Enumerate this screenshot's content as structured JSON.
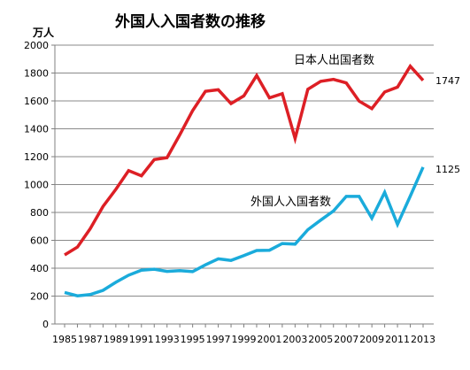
{
  "chart_data": {
    "type": "line",
    "title": "外国人入国者数の推移",
    "unit_label": "万人",
    "ylim": [
      0,
      2000
    ],
    "y_ticks": [
      0,
      200,
      400,
      600,
      800,
      1000,
      1200,
      1400,
      1600,
      1800,
      2000
    ],
    "x_tick_labels": [
      "1985",
      "1987",
      "1989",
      "1991",
      "1993",
      "1995",
      "1997",
      "1999",
      "2001",
      "2003",
      "2005",
      "2007",
      "2009",
      "2011",
      "2013"
    ],
    "x": [
      1985,
      1986,
      1987,
      1988,
      1989,
      1990,
      1991,
      1992,
      1993,
      1994,
      1995,
      1996,
      1997,
      1998,
      1999,
      2000,
      2001,
      2002,
      2003,
      2004,
      2005,
      2006,
      2007,
      2008,
      2009,
      2010,
      2011,
      2012,
      2013
    ],
    "grid": "horizontal",
    "legend": "none",
    "series": [
      {
        "name": "日本人出国者数",
        "color": "#dd1f25",
        "end_value_label": "1747",
        "values": [
          495,
          552,
          683,
          843,
          966,
          1100,
          1063,
          1179,
          1193,
          1358,
          1530,
          1669,
          1680,
          1581,
          1636,
          1782,
          1622,
          1652,
          1330,
          1683,
          1740,
          1754,
          1729,
          1599,
          1545,
          1664,
          1699,
          1849,
          1747
        ]
      },
      {
        "name": "外国人入国者数",
        "color": "#1aabdb",
        "end_value_label": "1125",
        "values": [
          226,
          202,
          211,
          241,
          299,
          350,
          386,
          393,
          377,
          383,
          375,
          424,
          467,
          456,
          490,
          527,
          529,
          577,
          573,
          676,
          745,
          811,
          915,
          915,
          759,
          944,
          714,
          917,
          1125
        ]
      }
    ]
  }
}
